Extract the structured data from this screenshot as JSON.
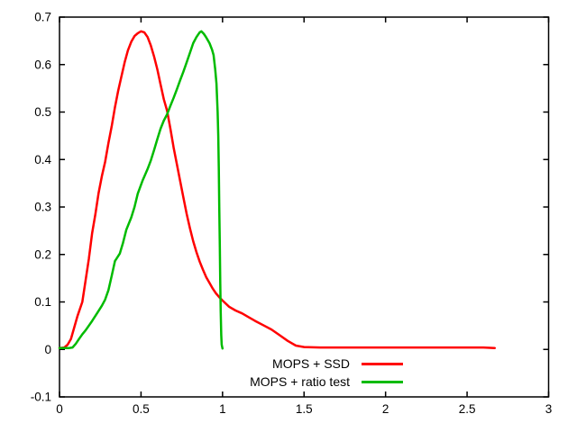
{
  "chart_data": {
    "type": "line",
    "title": "",
    "xlabel": "",
    "ylabel": "",
    "xlim": [
      0,
      3
    ],
    "ylim": [
      -0.1,
      0.7
    ],
    "grid": false,
    "background": "#ffffff",
    "axis_color": "#000000",
    "xticks": [
      {
        "value": 0,
        "label": "0"
      },
      {
        "value": 0.5,
        "label": "0.5"
      },
      {
        "value": 1,
        "label": "1"
      },
      {
        "value": 1.5,
        "label": "1.5"
      },
      {
        "value": 2,
        "label": "2"
      },
      {
        "value": 2.5,
        "label": "2.5"
      },
      {
        "value": 3,
        "label": "3"
      }
    ],
    "yticks": [
      {
        "value": -0.1,
        "label": "-0.1"
      },
      {
        "value": 0,
        "label": "0"
      },
      {
        "value": 0.1,
        "label": "0.1"
      },
      {
        "value": 0.2,
        "label": "0.2"
      },
      {
        "value": 0.3,
        "label": "0.3"
      },
      {
        "value": 0.4,
        "label": "0.4"
      },
      {
        "value": 0.5,
        "label": "0.5"
      },
      {
        "value": 0.6,
        "label": "0.6"
      },
      {
        "value": 0.7,
        "label": "0.7"
      }
    ],
    "legend_position": "inside bottom-right",
    "series": [
      {
        "name": "MOPS + SSD",
        "color": "#ff0000",
        "points": [
          [
            0.0,
            0.003
          ],
          [
            0.03,
            0.004
          ],
          [
            0.05,
            0.01
          ],
          [
            0.07,
            0.022
          ],
          [
            0.09,
            0.046
          ],
          [
            0.11,
            0.07
          ],
          [
            0.14,
            0.1
          ],
          [
            0.16,
            0.145
          ],
          [
            0.18,
            0.19
          ],
          [
            0.2,
            0.245
          ],
          [
            0.22,
            0.285
          ],
          [
            0.24,
            0.33
          ],
          [
            0.26,
            0.365
          ],
          [
            0.28,
            0.395
          ],
          [
            0.3,
            0.435
          ],
          [
            0.32,
            0.47
          ],
          [
            0.34,
            0.51
          ],
          [
            0.36,
            0.545
          ],
          [
            0.38,
            0.575
          ],
          [
            0.4,
            0.605
          ],
          [
            0.42,
            0.63
          ],
          [
            0.44,
            0.648
          ],
          [
            0.46,
            0.66
          ],
          [
            0.48,
            0.666
          ],
          [
            0.5,
            0.67
          ],
          [
            0.52,
            0.668
          ],
          [
            0.54,
            0.658
          ],
          [
            0.56,
            0.64
          ],
          [
            0.58,
            0.617
          ],
          [
            0.6,
            0.59
          ],
          [
            0.62,
            0.558
          ],
          [
            0.64,
            0.527
          ],
          [
            0.66,
            0.503
          ],
          [
            0.68,
            0.465
          ],
          [
            0.7,
            0.425
          ],
          [
            0.72,
            0.39
          ],
          [
            0.74,
            0.355
          ],
          [
            0.76,
            0.32
          ],
          [
            0.78,
            0.285
          ],
          [
            0.8,
            0.255
          ],
          [
            0.82,
            0.228
          ],
          [
            0.84,
            0.205
          ],
          [
            0.86,
            0.185
          ],
          [
            0.88,
            0.168
          ],
          [
            0.9,
            0.152
          ],
          [
            0.92,
            0.14
          ],
          [
            0.94,
            0.128
          ],
          [
            0.96,
            0.118
          ],
          [
            0.98,
            0.11
          ],
          [
            1.0,
            0.103
          ],
          [
            1.04,
            0.09
          ],
          [
            1.08,
            0.082
          ],
          [
            1.12,
            0.076
          ],
          [
            1.16,
            0.068
          ],
          [
            1.2,
            0.06
          ],
          [
            1.25,
            0.051
          ],
          [
            1.3,
            0.042
          ],
          [
            1.35,
            0.03
          ],
          [
            1.4,
            0.018
          ],
          [
            1.45,
            0.008
          ],
          [
            1.5,
            0.005
          ],
          [
            1.6,
            0.004
          ],
          [
            1.8,
            0.004
          ],
          [
            2.0,
            0.004
          ],
          [
            2.2,
            0.004
          ],
          [
            2.4,
            0.004
          ],
          [
            2.6,
            0.004
          ],
          [
            2.67,
            0.003
          ]
        ]
      },
      {
        "name": "MOPS + ratio test",
        "color": "#00bb00",
        "points": [
          [
            0.0,
            0.003
          ],
          [
            0.06,
            0.003
          ],
          [
            0.08,
            0.004
          ],
          [
            0.1,
            0.012
          ],
          [
            0.12,
            0.022
          ],
          [
            0.14,
            0.032
          ],
          [
            0.16,
            0.04
          ],
          [
            0.18,
            0.05
          ],
          [
            0.2,
            0.06
          ],
          [
            0.23,
            0.076
          ],
          [
            0.26,
            0.092
          ],
          [
            0.28,
            0.105
          ],
          [
            0.3,
            0.125
          ],
          [
            0.32,
            0.155
          ],
          [
            0.34,
            0.186
          ],
          [
            0.37,
            0.202
          ],
          [
            0.39,
            0.225
          ],
          [
            0.41,
            0.252
          ],
          [
            0.44,
            0.278
          ],
          [
            0.46,
            0.3
          ],
          [
            0.48,
            0.328
          ],
          [
            0.51,
            0.356
          ],
          [
            0.54,
            0.38
          ],
          [
            0.56,
            0.398
          ],
          [
            0.58,
            0.42
          ],
          [
            0.6,
            0.443
          ],
          [
            0.62,
            0.465
          ],
          [
            0.64,
            0.482
          ],
          [
            0.66,
            0.495
          ],
          [
            0.68,
            0.513
          ],
          [
            0.7,
            0.53
          ],
          [
            0.72,
            0.548
          ],
          [
            0.74,
            0.567
          ],
          [
            0.76,
            0.585
          ],
          [
            0.78,
            0.605
          ],
          [
            0.8,
            0.625
          ],
          [
            0.82,
            0.645
          ],
          [
            0.84,
            0.658
          ],
          [
            0.86,
            0.668
          ],
          [
            0.87,
            0.67
          ],
          [
            0.885,
            0.665
          ],
          [
            0.9,
            0.657
          ],
          [
            0.92,
            0.645
          ],
          [
            0.935,
            0.632
          ],
          [
            0.945,
            0.62
          ],
          [
            0.955,
            0.59
          ],
          [
            0.963,
            0.56
          ],
          [
            0.97,
            0.5
          ],
          [
            0.974,
            0.45
          ],
          [
            0.977,
            0.38
          ],
          [
            0.98,
            0.3
          ],
          [
            0.983,
            0.22
          ],
          [
            0.986,
            0.14
          ],
          [
            0.989,
            0.08
          ],
          [
            0.992,
            0.03
          ],
          [
            0.995,
            0.01
          ],
          [
            1.0,
            0.002
          ]
        ]
      }
    ]
  }
}
